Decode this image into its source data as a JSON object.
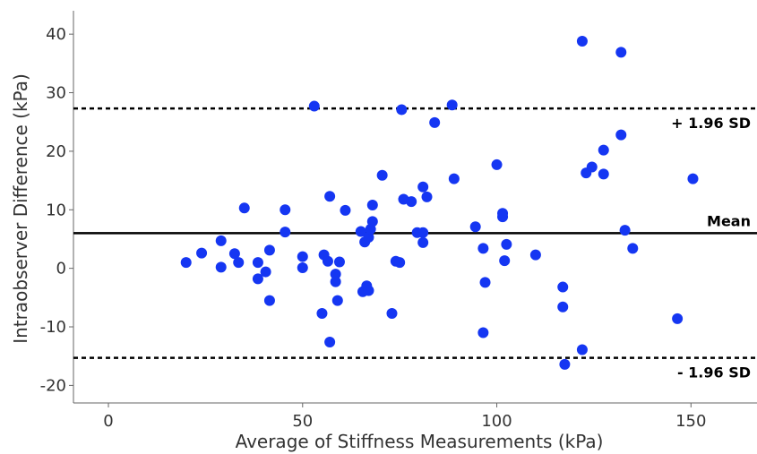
{
  "colors": {
    "points": "#1536f2",
    "lines": "#000000",
    "axes": "#666666",
    "text": "#333333"
  },
  "chart_data": {
    "type": "scatter",
    "title": "",
    "xlabel": "Average of Stiffness Measurements (kPa)",
    "ylabel": "Intraobserver Difference (kPa)",
    "xlim": [
      -9,
      167
    ],
    "ylim": [
      -23,
      44
    ],
    "xticks": [
      0,
      50,
      100,
      150
    ],
    "yticks": [
      -20,
      -10,
      0,
      10,
      20,
      30,
      40
    ],
    "grid": false,
    "reference_lines": [
      {
        "id": "upper-loa",
        "y": 27.3,
        "style": "dashed",
        "label": "+ 1.96 SD"
      },
      {
        "id": "mean",
        "y": 6.0,
        "style": "solid",
        "label": "Mean"
      },
      {
        "id": "lower-loa",
        "y": -15.3,
        "style": "dashed",
        "label": "- 1.96 SD"
      }
    ],
    "points": [
      [
        20,
        1
      ],
      [
        24,
        2.6
      ],
      [
        29,
        4.7
      ],
      [
        29,
        0.2
      ],
      [
        32.5,
        2.5
      ],
      [
        33.5,
        1
      ],
      [
        35,
        10.3
      ],
      [
        38.5,
        1
      ],
      [
        38.5,
        -1.8
      ],
      [
        40.5,
        -0.6
      ],
      [
        41.5,
        3.1
      ],
      [
        41.5,
        -5.5
      ],
      [
        45.5,
        10
      ],
      [
        45.5,
        6.2
      ],
      [
        50,
        2
      ],
      [
        50,
        0.1
      ],
      [
        53,
        27.7
      ],
      [
        55,
        -7.7
      ],
      [
        55.5,
        2.3
      ],
      [
        56.5,
        1.2
      ],
      [
        57,
        12.3
      ],
      [
        57,
        -12.6
      ],
      [
        58.5,
        -1
      ],
      [
        58.5,
        -2.3
      ],
      [
        59,
        -5.5
      ],
      [
        59.5,
        1.1
      ],
      [
        61,
        9.9
      ],
      [
        65,
        6.3
      ],
      [
        65.5,
        -4
      ],
      [
        66,
        4.5
      ],
      [
        66.5,
        -3
      ],
      [
        67,
        5.3
      ],
      [
        67,
        -3.8
      ],
      [
        67.5,
        6.7
      ],
      [
        68,
        10.8
      ],
      [
        68,
        8
      ],
      [
        70.5,
        15.9
      ],
      [
        73,
        -7.7
      ],
      [
        74,
        1.2
      ],
      [
        75,
        1
      ],
      [
        75.5,
        27.1
      ],
      [
        76,
        11.8
      ],
      [
        78,
        11.4
      ],
      [
        79.5,
        6.1
      ],
      [
        81,
        13.9
      ],
      [
        81,
        6.1
      ],
      [
        81,
        4.4
      ],
      [
        82,
        12.2
      ],
      [
        84,
        24.9
      ],
      [
        88.5,
        27.9
      ],
      [
        89,
        15.3
      ],
      [
        94.5,
        7.1
      ],
      [
        96.5,
        -11
      ],
      [
        96.5,
        3.4
      ],
      [
        97,
        -2.4
      ],
      [
        100,
        17.7
      ],
      [
        101.5,
        9.4
      ],
      [
        101.5,
        8.8
      ],
      [
        102,
        1.3
      ],
      [
        102.5,
        4.1
      ],
      [
        110,
        2.3
      ],
      [
        117,
        -3.2
      ],
      [
        117,
        -6.6
      ],
      [
        117.5,
        -16.4
      ],
      [
        122,
        38.8
      ],
      [
        122,
        -13.9
      ],
      [
        123,
        16.3
      ],
      [
        124.5,
        17.3
      ],
      [
        127.5,
        20.2
      ],
      [
        127.5,
        16.1
      ],
      [
        132,
        36.9
      ],
      [
        132,
        22.8
      ],
      [
        133,
        6.5
      ],
      [
        135,
        3.4
      ],
      [
        146.5,
        -8.6
      ],
      [
        150.5,
        15.3
      ]
    ]
  }
}
